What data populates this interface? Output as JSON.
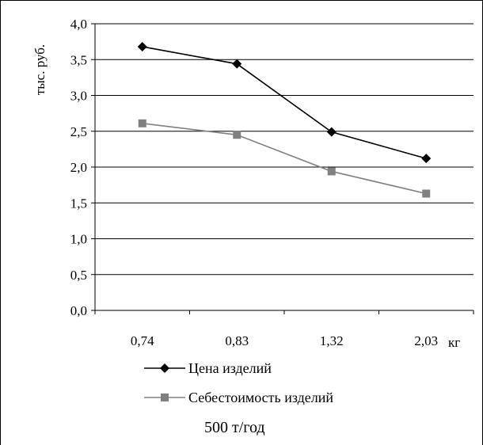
{
  "chart_data": {
    "type": "line",
    "ylabel": "тыс. руб.",
    "xlabel": "кг",
    "categories": [
      "0,74",
      "0,83",
      "1,32",
      "2,03"
    ],
    "ylim": [
      0,
      4
    ],
    "yticks": [
      "0,0",
      "0,5",
      "1,0",
      "1,5",
      "2,0",
      "2,5",
      "3,0",
      "3,5",
      "4,0"
    ],
    "grid": true,
    "legend_position": "bottom",
    "caption": "500 т/год",
    "series": [
      {
        "name": "Цена изделий",
        "values": [
          3.68,
          3.44,
          2.49,
          2.12
        ],
        "color": "#000000",
        "marker": "diamond"
      },
      {
        "name": "Себестоимость изделий",
        "values": [
          2.61,
          2.45,
          1.94,
          1.63
        ],
        "color": "#808080",
        "marker": "square"
      }
    ]
  }
}
